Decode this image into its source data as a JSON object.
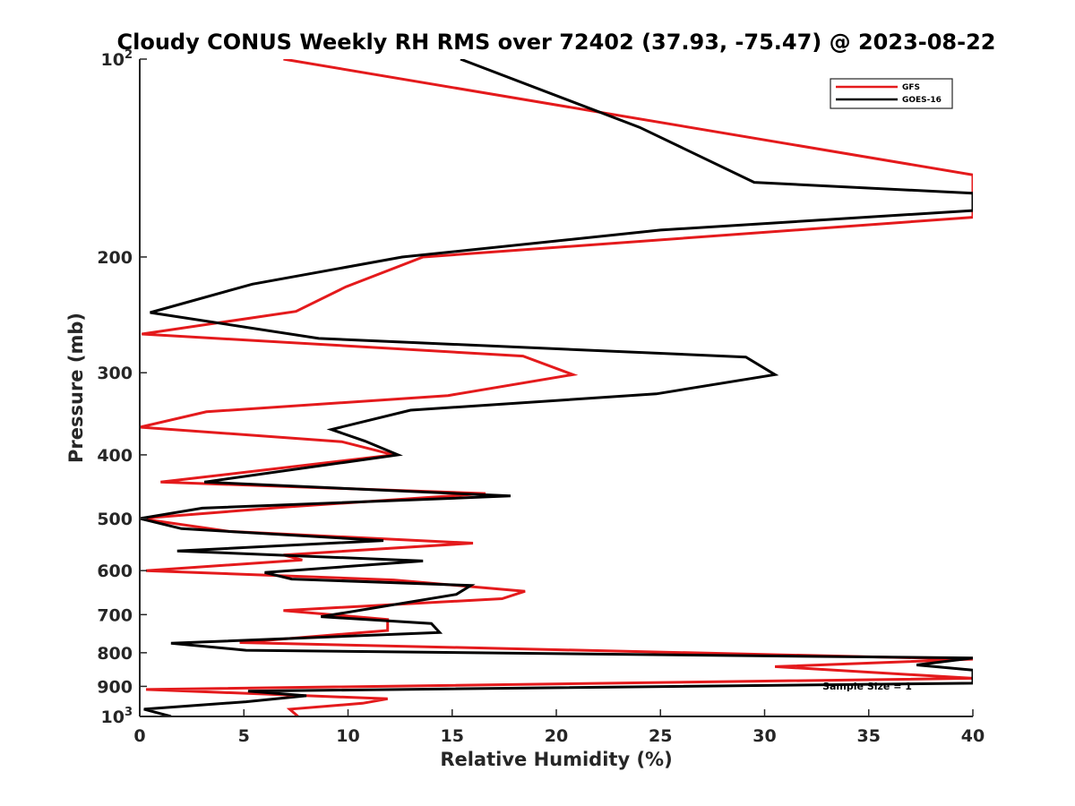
{
  "chart_data": {
    "type": "line",
    "title": "Cloudy CONUS Weekly RH RMS over 72402 (37.93, -75.47) @ 2023-08-22",
    "xlabel": "Relative Humidity (%)",
    "ylabel": "Pressure (mb)",
    "xlim": [
      0,
      40
    ],
    "ylim": [
      100,
      1000
    ],
    "y_scale": "log",
    "y_reversed": true,
    "x_ticks": [
      "0",
      "5",
      "10",
      "15",
      "20",
      "25",
      "30",
      "35",
      "40"
    ],
    "y_ticks": [
      {
        "value": 100,
        "base": "10",
        "exp": "2"
      },
      {
        "value": 200,
        "label": "200"
      },
      {
        "value": 300,
        "label": "300"
      },
      {
        "value": 400,
        "label": "400"
      },
      {
        "value": 500,
        "label": "500"
      },
      {
        "value": 600,
        "label": "600"
      },
      {
        "value": 700,
        "label": "700"
      },
      {
        "value": 800,
        "label": "800"
      },
      {
        "value": 900,
        "label": "900"
      },
      {
        "value": 1000,
        "base": "10",
        "exp": "3"
      }
    ],
    "grid": false,
    "legend_position": "top-right",
    "annotation": "Sample Size = 1",
    "series": [
      {
        "name": "GFS",
        "color": "#e41a1c",
        "points": [
          [
            6.9,
            100
          ],
          [
            40,
            150
          ],
          [
            40,
            174
          ],
          [
            13.6,
            200
          ],
          [
            9.9,
            222
          ],
          [
            7.5,
            242
          ],
          [
            0.1,
            262
          ],
          [
            18.4,
            283
          ],
          [
            20.8,
            302
          ],
          [
            14.8,
            325
          ],
          [
            3.2,
            344
          ],
          [
            0,
            363
          ],
          [
            9.7,
            382
          ],
          [
            12.2,
            400
          ],
          [
            1.0,
            440
          ],
          [
            16.6,
            458
          ],
          [
            7.1,
            480
          ],
          [
            0,
            500
          ],
          [
            4.3,
            523
          ],
          [
            16.0,
            545
          ],
          [
            6.9,
            568
          ],
          [
            7.8,
            578
          ],
          [
            0.3,
            600
          ],
          [
            12.2,
            620
          ],
          [
            18.5,
            645
          ],
          [
            17.4,
            662
          ],
          [
            6.9,
            690
          ],
          [
            11.9,
            712
          ],
          [
            11.9,
            740
          ],
          [
            4.8,
            772
          ],
          [
            40,
            818
          ],
          [
            30.5,
            840
          ],
          [
            40,
            875
          ],
          [
            0.3,
            910
          ],
          [
            11.9,
            940
          ],
          [
            10.7,
            955
          ],
          [
            7.2,
            975
          ],
          [
            7.6,
            1000
          ]
        ]
      },
      {
        "name": "GOES-16",
        "color": "#000000",
        "points": [
          [
            15.4,
            100
          ],
          [
            24.0,
            127
          ],
          [
            29.5,
            154
          ],
          [
            40,
            160
          ],
          [
            40,
            170
          ],
          [
            25.0,
            182
          ],
          [
            12.6,
            200
          ],
          [
            5.4,
            220
          ],
          [
            0.5,
            243
          ],
          [
            8.6,
            266
          ],
          [
            29.1,
            284
          ],
          [
            30.5,
            302
          ],
          [
            24.8,
            323
          ],
          [
            13.0,
            342
          ],
          [
            9.2,
            366
          ],
          [
            10.8,
            381
          ],
          [
            12.4,
            400
          ],
          [
            3.1,
            440
          ],
          [
            17.8,
            462
          ],
          [
            3.0,
            482
          ],
          [
            0,
            500
          ],
          [
            2.0,
            518
          ],
          [
            11.7,
            540
          ],
          [
            1.8,
            560
          ],
          [
            13.6,
            580
          ],
          [
            6.0,
            604
          ],
          [
            7.3,
            618
          ],
          [
            15.9,
            632
          ],
          [
            15.2,
            652
          ],
          [
            8.7,
            705
          ],
          [
            14.0,
            722
          ],
          [
            14.4,
            745
          ],
          [
            1.5,
            774
          ],
          [
            5.1,
            793
          ],
          [
            40,
            815
          ],
          [
            37.3,
            835
          ],
          [
            40,
            850
          ],
          [
            40,
            890
          ],
          [
            5.2,
            915
          ],
          [
            8.0,
            930
          ],
          [
            5.1,
            950
          ],
          [
            0.2,
            975
          ],
          [
            1.5,
            1000
          ]
        ]
      }
    ]
  }
}
